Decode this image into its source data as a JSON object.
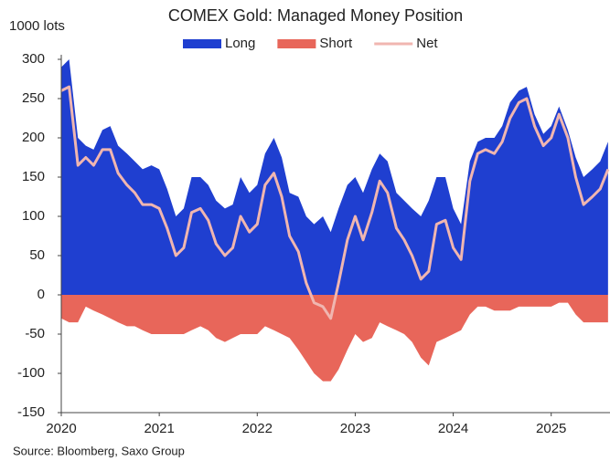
{
  "chart_data": {
    "type": "area",
    "title": "COMEX Gold: Managed Money Position",
    "y_label": "1000 lots",
    "source": "Source: Bloomberg, Saxo Group",
    "x": [
      2020.0,
      2020.08,
      2020.17,
      2020.25,
      2020.33,
      2020.42,
      2020.5,
      2020.58,
      2020.67,
      2020.75,
      2020.83,
      2020.92,
      2021.0,
      2021.08,
      2021.17,
      2021.25,
      2021.33,
      2021.42,
      2021.5,
      2021.58,
      2021.67,
      2021.75,
      2021.83,
      2021.92,
      2022.0,
      2022.08,
      2022.17,
      2022.25,
      2022.33,
      2022.42,
      2022.5,
      2022.58,
      2022.67,
      2022.75,
      2022.83,
      2022.92,
      2023.0,
      2023.08,
      2023.17,
      2023.25,
      2023.33,
      2023.42,
      2023.5,
      2023.58,
      2023.67,
      2023.75,
      2023.83,
      2023.92,
      2024.0,
      2024.08,
      2024.17,
      2024.25,
      2024.33,
      2024.42,
      2024.5,
      2024.58,
      2024.67,
      2024.75,
      2024.83,
      2024.92,
      2025.0,
      2025.08,
      2025.17,
      2025.25,
      2025.33,
      2025.42,
      2025.5,
      2025.58
    ],
    "series": [
      {
        "name": "Long",
        "color": "#1f3fd0",
        "kind": "area",
        "values": [
          290,
          300,
          200,
          190,
          185,
          210,
          215,
          190,
          180,
          170,
          160,
          165,
          160,
          135,
          100,
          110,
          150,
          150,
          140,
          120,
          110,
          115,
          150,
          130,
          140,
          180,
          200,
          175,
          130,
          125,
          100,
          90,
          100,
          80,
          110,
          140,
          150,
          130,
          160,
          180,
          170,
          130,
          120,
          110,
          100,
          120,
          150,
          150,
          110,
          90,
          170,
          195,
          200,
          200,
          215,
          245,
          260,
          265,
          230,
          205,
          215,
          240,
          210,
          175,
          150,
          160,
          170,
          195
        ]
      },
      {
        "name": "Short",
        "color": "#e8665a",
        "kind": "area",
        "values": [
          -30,
          -35,
          -35,
          -15,
          -20,
          -25,
          -30,
          -35,
          -40,
          -40,
          -45,
          -50,
          -50,
          -50,
          -50,
          -50,
          -45,
          -40,
          -45,
          -55,
          -60,
          -55,
          -50,
          -50,
          -50,
          -40,
          -45,
          -50,
          -55,
          -70,
          -85,
          -100,
          -110,
          -110,
          -95,
          -70,
          -50,
          -60,
          -55,
          -35,
          -40,
          -45,
          -50,
          -60,
          -80,
          -90,
          -60,
          -55,
          -50,
          -45,
          -25,
          -15,
          -15,
          -20,
          -20,
          -20,
          -15,
          -15,
          -15,
          -15,
          -15,
          -10,
          -10,
          -25,
          -35,
          -35,
          -35,
          -35
        ]
      },
      {
        "name": "Net",
        "color": "#f0b6b0",
        "kind": "line",
        "values": [
          260,
          265,
          165,
          175,
          165,
          185,
          185,
          155,
          140,
          130,
          115,
          115,
          110,
          85,
          50,
          60,
          105,
          110,
          95,
          65,
          50,
          60,
          100,
          80,
          90,
          140,
          155,
          125,
          75,
          55,
          15,
          -10,
          -15,
          -30,
          15,
          70,
          100,
          70,
          105,
          145,
          130,
          85,
          70,
          50,
          20,
          30,
          90,
          95,
          60,
          45,
          145,
          180,
          185,
          180,
          195,
          225,
          245,
          250,
          215,
          190,
          200,
          230,
          200,
          150,
          115,
          125,
          135,
          160
        ]
      }
    ],
    "xlim": [
      2020,
      2025.6
    ],
    "xticks": [
      2020,
      2021,
      2022,
      2023,
      2024,
      2025
    ],
    "ylim": [
      -150,
      300
    ],
    "yticks": [
      300,
      250,
      200,
      150,
      100,
      50,
      0,
      -50,
      -100,
      -150
    ],
    "legend": "top"
  }
}
